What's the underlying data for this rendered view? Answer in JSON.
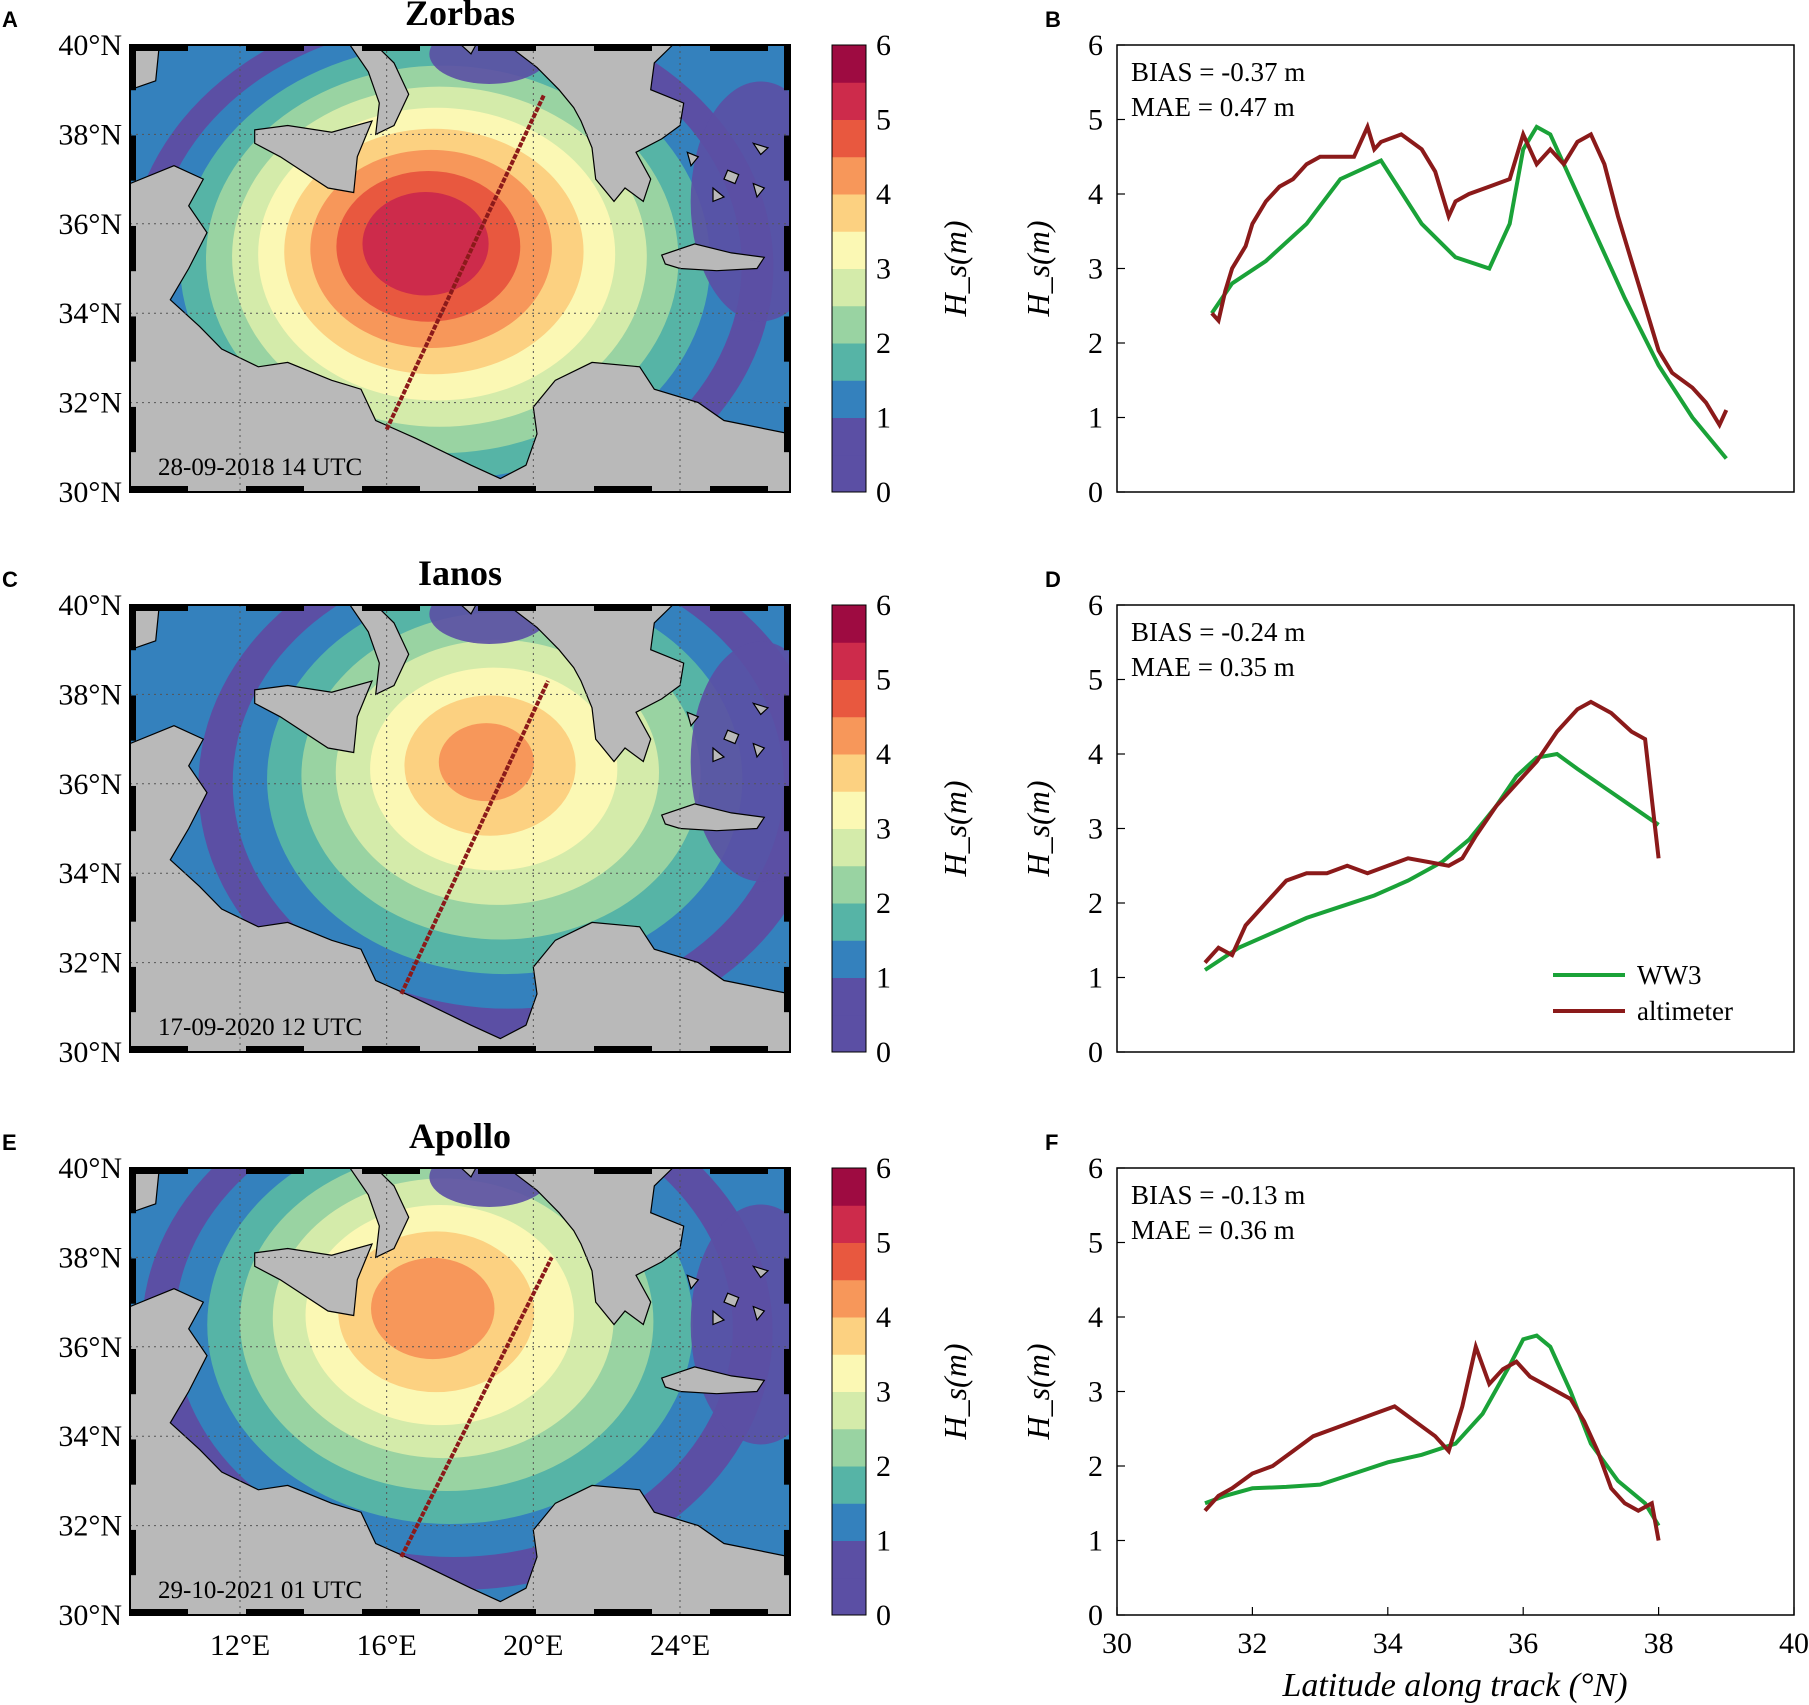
{
  "colors": {
    "ww3": "#1aa238",
    "altimeter": "#8b1a1a",
    "land": "#b9b9b9",
    "colorbar": [
      "#5b4fa4",
      "#3481bd",
      "#56b4a6",
      "#99d3a2",
      "#d4ebaa",
      "#fbf8b4",
      "#fcd181",
      "#f7975a",
      "#e8583f",
      "#cd2b4b",
      "#9e0b41"
    ]
  },
  "maps": [
    {
      "panel": "A",
      "title": "Zorbas",
      "date": "28-09-2018 14 UTC",
      "colorbar_label": "H_s(m)",
      "colorbar_ticks": [
        "0",
        "1",
        "2",
        "3",
        "4",
        "5",
        "6"
      ],
      "y_ticks": [
        "40°N",
        "38°N",
        "36°N",
        "34°N",
        "32°N",
        "30°N"
      ],
      "x_ticks": [
        "12°E",
        "16°E",
        "20°E",
        "24°E"
      ],
      "lon_range": [
        9,
        27
      ],
      "lat_range": [
        30,
        40
      ],
      "storm_center": {
        "lon": 17.0,
        "lat": 35.6
      },
      "peak_hs": 5.4,
      "track": {
        "start": {
          "lon": 16.0,
          "lat": 31.4
        },
        "end": {
          "lon": 20.3,
          "lat": 38.9
        }
      }
    },
    {
      "panel": "C",
      "title": "Ianos",
      "date": "17-09-2020 12 UTC",
      "colorbar_label": "H_s(m)",
      "colorbar_ticks": [
        "0",
        "1",
        "2",
        "3",
        "4",
        "5",
        "6"
      ],
      "y_ticks": [
        "40°N",
        "38°N",
        "36°N",
        "34°N",
        "32°N",
        "30°N"
      ],
      "x_ticks": [
        "12°E",
        "16°E",
        "20°E",
        "24°E"
      ],
      "lon_range": [
        9,
        27
      ],
      "lat_range": [
        30,
        40
      ],
      "storm_center": {
        "lon": 18.7,
        "lat": 36.5
      },
      "peak_hs": 4.1,
      "track": {
        "start": {
          "lon": 16.4,
          "lat": 31.3
        },
        "end": {
          "lon": 20.4,
          "lat": 38.3
        }
      }
    },
    {
      "panel": "E",
      "title": "Apollo",
      "date": "29-10-2021 01 UTC",
      "colorbar_label": "H_s(m)",
      "colorbar_ticks": [
        "0",
        "1",
        "2",
        "3",
        "4",
        "5",
        "6"
      ],
      "y_ticks": [
        "40°N",
        "38°N",
        "36°N",
        "34°N",
        "32°N",
        "30°N"
      ],
      "x_ticks": [
        "12°E",
        "16°E",
        "20°E",
        "24°E"
      ],
      "lon_range": [
        9,
        27
      ],
      "lat_range": [
        30,
        40
      ],
      "storm_center": {
        "lon": 17.2,
        "lat": 36.9
      },
      "peak_hs": 4.3,
      "track": {
        "start": {
          "lon": 16.4,
          "lat": 31.3
        },
        "end": {
          "lon": 20.5,
          "lat": 38.0
        }
      }
    }
  ],
  "chart_data": [
    {
      "panel": "B",
      "type": "line",
      "ylabel": "H_s(m)",
      "xlabel": "",
      "xlim": [
        30,
        40
      ],
      "ylim": [
        0,
        6
      ],
      "x_ticks": [],
      "y_ticks": [
        0,
        1,
        2,
        3,
        4,
        5,
        6
      ],
      "stats": [
        "BIAS = -0.37 m",
        "MAE = 0.47 m"
      ],
      "series": [
        {
          "name": "WW3",
          "x": [
            31.4,
            31.7,
            32.2,
            32.8,
            33.3,
            33.9,
            34.5,
            35.0,
            35.5,
            35.8,
            36.0,
            36.2,
            36.4,
            36.6,
            37.0,
            37.5,
            38.0,
            38.5,
            39.0
          ],
          "y": [
            2.4,
            2.8,
            3.1,
            3.6,
            4.2,
            4.45,
            3.6,
            3.15,
            3.0,
            3.6,
            4.6,
            4.9,
            4.8,
            4.4,
            3.6,
            2.6,
            1.7,
            1.0,
            0.45
          ]
        },
        {
          "name": "altimeter",
          "x": [
            31.4,
            31.5,
            31.6,
            31.7,
            31.9,
            32.0,
            32.2,
            32.4,
            32.6,
            32.8,
            33.0,
            33.2,
            33.5,
            33.7,
            33.8,
            33.9,
            34.2,
            34.5,
            34.7,
            34.9,
            35.0,
            35.2,
            35.5,
            35.8,
            36.0,
            36.2,
            36.4,
            36.6,
            36.8,
            37.0,
            37.2,
            37.4,
            37.6,
            37.8,
            38.0,
            38.2,
            38.5,
            38.7,
            38.9,
            39.0
          ],
          "y": [
            2.4,
            2.3,
            2.7,
            3.0,
            3.3,
            3.6,
            3.9,
            4.1,
            4.2,
            4.4,
            4.5,
            4.5,
            4.5,
            4.9,
            4.6,
            4.7,
            4.8,
            4.6,
            4.3,
            3.7,
            3.9,
            4.0,
            4.1,
            4.2,
            4.8,
            4.4,
            4.6,
            4.4,
            4.7,
            4.8,
            4.4,
            3.7,
            3.1,
            2.5,
            1.9,
            1.6,
            1.4,
            1.2,
            0.9,
            1.1
          ]
        }
      ]
    },
    {
      "panel": "D",
      "type": "line",
      "ylabel": "H_s(m)",
      "xlabel": "",
      "xlim": [
        30,
        40
      ],
      "ylim": [
        0,
        6
      ],
      "x_ticks": [],
      "y_ticks": [
        0,
        1,
        2,
        3,
        4,
        5,
        6
      ],
      "stats": [
        "BIAS = -0.24 m",
        "MAE = 0.35 m"
      ],
      "legend": {
        "placement": "lower-right",
        "entries": [
          "WW3",
          "altimeter"
        ]
      },
      "series": [
        {
          "name": "WW3",
          "x": [
            31.3,
            31.8,
            32.3,
            32.8,
            33.3,
            33.8,
            34.3,
            34.8,
            35.2,
            35.6,
            35.9,
            36.2,
            36.5,
            36.8,
            37.2,
            37.6,
            38.0
          ],
          "y": [
            1.1,
            1.4,
            1.6,
            1.8,
            1.95,
            2.1,
            2.3,
            2.55,
            2.85,
            3.3,
            3.7,
            3.95,
            4.0,
            3.8,
            3.55,
            3.3,
            3.05
          ]
        },
        {
          "name": "altimeter",
          "x": [
            31.3,
            31.5,
            31.7,
            31.9,
            32.2,
            32.5,
            32.8,
            33.1,
            33.4,
            33.7,
            34.0,
            34.3,
            34.6,
            34.9,
            35.1,
            35.3,
            35.6,
            35.9,
            36.2,
            36.5,
            36.8,
            37.0,
            37.3,
            37.6,
            37.8,
            37.9,
            38.0
          ],
          "y": [
            1.2,
            1.4,
            1.3,
            1.7,
            2.0,
            2.3,
            2.4,
            2.4,
            2.5,
            2.4,
            2.5,
            2.6,
            2.55,
            2.5,
            2.6,
            2.9,
            3.3,
            3.6,
            3.9,
            4.3,
            4.6,
            4.7,
            4.55,
            4.3,
            4.2,
            3.4,
            2.6
          ]
        }
      ]
    },
    {
      "panel": "F",
      "type": "line",
      "ylabel": "H_s(m)",
      "xlabel": "Latitude along track (°N)",
      "xlim": [
        30,
        40
      ],
      "ylim": [
        0,
        6
      ],
      "x_ticks": [
        30,
        32,
        34,
        36,
        38,
        40
      ],
      "y_ticks": [
        0,
        1,
        2,
        3,
        4,
        5,
        6
      ],
      "stats": [
        "BIAS = -0.13 m",
        "MAE = 0.36 m"
      ],
      "series": [
        {
          "name": "WW3",
          "x": [
            31.3,
            31.6,
            32.0,
            32.5,
            33.0,
            33.5,
            34.0,
            34.5,
            35.0,
            35.4,
            35.8,
            36.0,
            36.2,
            36.4,
            36.7,
            37.0,
            37.4,
            37.8,
            38.0
          ],
          "y": [
            1.5,
            1.6,
            1.7,
            1.72,
            1.75,
            1.9,
            2.05,
            2.15,
            2.3,
            2.7,
            3.35,
            3.7,
            3.75,
            3.6,
            3.0,
            2.3,
            1.8,
            1.5,
            1.2
          ]
        },
        {
          "name": "altimeter",
          "x": [
            31.3,
            31.5,
            31.7,
            32.0,
            32.3,
            32.6,
            32.9,
            33.2,
            33.5,
            33.8,
            34.1,
            34.4,
            34.7,
            34.9,
            35.1,
            35.3,
            35.5,
            35.7,
            35.9,
            36.1,
            36.3,
            36.5,
            36.7,
            36.9,
            37.1,
            37.3,
            37.5,
            37.7,
            37.9,
            38.0
          ],
          "y": [
            1.4,
            1.6,
            1.7,
            1.9,
            2.0,
            2.2,
            2.4,
            2.5,
            2.6,
            2.7,
            2.8,
            2.6,
            2.4,
            2.2,
            2.8,
            3.6,
            3.1,
            3.3,
            3.4,
            3.2,
            3.1,
            3.0,
            2.9,
            2.6,
            2.2,
            1.7,
            1.5,
            1.4,
            1.5,
            1.0
          ]
        }
      ]
    }
  ]
}
